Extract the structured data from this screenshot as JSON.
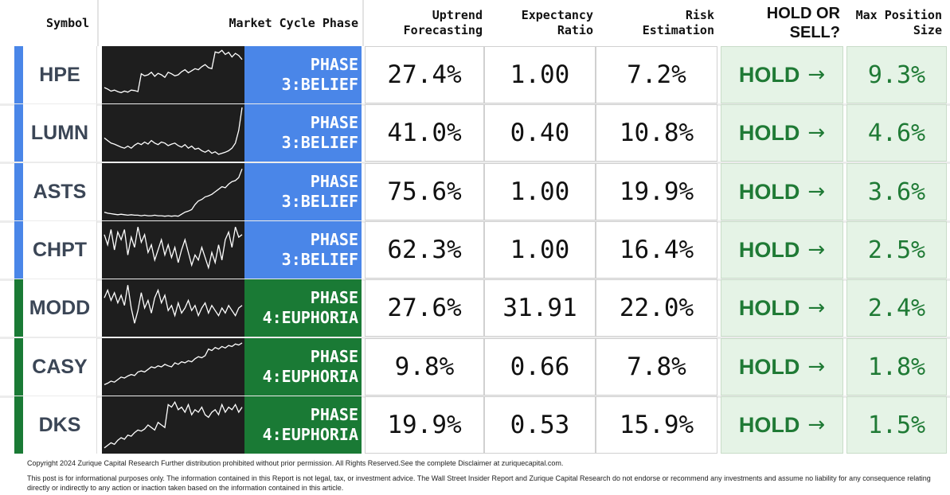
{
  "header": {
    "symbol": "Symbol",
    "phase": "Market Cycle Phase",
    "uptrend": [
      "Uptrend",
      "Forecasting"
    ],
    "expectancy": [
      "Expectancy",
      "Ratio"
    ],
    "risk": [
      "Risk",
      "Estimation"
    ],
    "hold": [
      "HOLD OR",
      "SELL?"
    ],
    "max": [
      "Max Position",
      "Size"
    ]
  },
  "colors": {
    "phase3": "#4a86e8",
    "phase4": "#1a7a35",
    "stripe_blue": "#4a86e8",
    "stripe_green": "#1a7a35",
    "hold_green": "#1f7a35",
    "hold_bg": "#e5f3e6",
    "spark_bg": "#1e1e1e"
  },
  "rows": [
    {
      "symbol": "HPE",
      "phase_line1": "PHASE",
      "phase_line2": "3:BELIEF",
      "phase_color": "#4a86e8",
      "uptrend": "27.4%",
      "expectancy": "1.00",
      "risk": "7.2%",
      "hold": "HOLD",
      "arrow": "→",
      "max": "9.3%",
      "spark": [
        0.25,
        0.22,
        0.18,
        0.2,
        0.17,
        0.15,
        0.18,
        0.16,
        0.2,
        0.19,
        0.17,
        0.52,
        0.48,
        0.5,
        0.55,
        0.47,
        0.53,
        0.5,
        0.45,
        0.55,
        0.52,
        0.48,
        0.5,
        0.56,
        0.6,
        0.54,
        0.58,
        0.62,
        0.6,
        0.66,
        0.7,
        0.64,
        0.62,
        0.95,
        0.93,
        0.98,
        0.9,
        0.94,
        0.85,
        0.92,
        0.88,
        0.8
      ]
    },
    {
      "symbol": "LUMN",
      "phase_line1": "PHASE",
      "phase_line2": "3:BELIEF",
      "phase_color": "#4a86e8",
      "uptrend": "41.0%",
      "expectancy": "0.40",
      "risk": "10.8%",
      "hold": "HOLD",
      "arrow": "→",
      "max": "4.6%",
      "spark": [
        0.4,
        0.35,
        0.3,
        0.28,
        0.25,
        0.22,
        0.2,
        0.24,
        0.2,
        0.26,
        0.3,
        0.27,
        0.32,
        0.28,
        0.35,
        0.3,
        0.27,
        0.32,
        0.3,
        0.25,
        0.28,
        0.3,
        0.25,
        0.22,
        0.27,
        0.2,
        0.24,
        0.18,
        0.2,
        0.15,
        0.12,
        0.16,
        0.1,
        0.13,
        0.08,
        0.1,
        0.12,
        0.15,
        0.2,
        0.3,
        0.55,
        1.0
      ]
    },
    {
      "symbol": "ASTS",
      "phase_line1": "PHASE",
      "phase_line2": "3:BELIEF",
      "phase_color": "#4a86e8",
      "uptrend": "75.6%",
      "expectancy": "1.00",
      "risk": "19.9%",
      "hold": "HOLD",
      "arrow": "→",
      "max": "3.6%",
      "spark": [
        0.1,
        0.08,
        0.07,
        0.06,
        0.05,
        0.06,
        0.05,
        0.04,
        0.05,
        0.04,
        0.04,
        0.03,
        0.04,
        0.03,
        0.03,
        0.04,
        0.03,
        0.03,
        0.02,
        0.03,
        0.02,
        0.03,
        0.02,
        0.06,
        0.1,
        0.12,
        0.15,
        0.25,
        0.32,
        0.35,
        0.4,
        0.42,
        0.45,
        0.5,
        0.55,
        0.6,
        0.58,
        0.65,
        0.7,
        0.72,
        0.78,
        0.95
      ]
    },
    {
      "symbol": "CHPT",
      "phase_line1": "PHASE",
      "phase_line2": "3:BELIEF",
      "phase_color": "#4a86e8",
      "uptrend": "62.3%",
      "expectancy": "1.00",
      "risk": "16.4%",
      "hold": "HOLD",
      "arrow": "→",
      "max": "2.5%",
      "spark": [
        0.8,
        0.6,
        0.9,
        0.5,
        0.85,
        0.7,
        0.9,
        0.4,
        0.75,
        0.55,
        0.95,
        0.65,
        0.8,
        0.45,
        0.6,
        0.3,
        0.5,
        0.7,
        0.4,
        0.6,
        0.35,
        0.55,
        0.25,
        0.5,
        0.7,
        0.45,
        0.2,
        0.4,
        0.3,
        0.55,
        0.35,
        0.15,
        0.45,
        0.25,
        0.6,
        0.3,
        0.7,
        0.85,
        0.55,
        0.95,
        0.75,
        0.8
      ]
    },
    {
      "symbol": "MODD",
      "phase_line1": "PHASE",
      "phase_line2": "4:EUPHORIA",
      "phase_color": "#1a7a35",
      "uptrend": "27.6%",
      "expectancy": "31.91",
      "risk": "22.0%",
      "hold": "HOLD",
      "arrow": "→",
      "max": "2.4%",
      "spark": [
        0.7,
        0.85,
        0.65,
        0.8,
        0.6,
        0.75,
        0.55,
        0.95,
        0.5,
        0.2,
        0.45,
        0.8,
        0.5,
        0.65,
        0.4,
        0.7,
        0.85,
        0.6,
        0.75,
        0.45,
        0.55,
        0.35,
        0.6,
        0.4,
        0.5,
        0.65,
        0.45,
        0.55,
        0.35,
        0.5,
        0.6,
        0.4,
        0.55,
        0.45,
        0.35,
        0.5,
        0.4,
        0.55,
        0.45,
        0.35,
        0.5,
        0.55
      ]
    },
    {
      "symbol": "CASY",
      "phase_line1": "PHASE",
      "phase_line2": "4:EUPHORIA",
      "phase_color": "#1a7a35",
      "uptrend": "9.8%",
      "expectancy": "0.66",
      "risk": "7.8%",
      "hold": "HOLD",
      "arrow": "→",
      "max": "1.8%",
      "spark": [
        0.15,
        0.18,
        0.22,
        0.2,
        0.25,
        0.3,
        0.28,
        0.32,
        0.35,
        0.33,
        0.4,
        0.42,
        0.4,
        0.45,
        0.5,
        0.48,
        0.52,
        0.5,
        0.55,
        0.52,
        0.5,
        0.58,
        0.55,
        0.6,
        0.58,
        0.62,
        0.6,
        0.66,
        0.7,
        0.68,
        0.72,
        0.85,
        0.82,
        0.88,
        0.85,
        0.9,
        0.87,
        0.92,
        0.9,
        0.95,
        0.93,
        0.97
      ]
    },
    {
      "symbol": "DKS",
      "phase_line1": "PHASE",
      "phase_line2": "4:EUPHORIA",
      "phase_color": "#1a7a35",
      "uptrend": "19.9%",
      "expectancy": "0.53",
      "risk": "15.9%",
      "hold": "HOLD",
      "arrow": "→",
      "max": "1.5%",
      "spark": [
        0.05,
        0.1,
        0.15,
        0.12,
        0.2,
        0.25,
        0.22,
        0.3,
        0.28,
        0.35,
        0.4,
        0.38,
        0.42,
        0.5,
        0.45,
        0.4,
        0.55,
        0.5,
        0.45,
        0.9,
        0.85,
        0.95,
        0.8,
        0.85,
        0.75,
        0.9,
        0.7,
        0.8,
        0.75,
        0.85,
        0.7,
        0.65,
        0.75,
        0.8,
        0.7,
        0.9,
        0.75,
        0.85,
        0.8,
        0.9,
        0.75,
        0.85
      ]
    }
  ],
  "footer": {
    "copyright": "Copyright 2024 Zurique Capital Research Further distribution prohibited without prior permission. All Rights Reserved.See the complete Disclaimer at zuriquecapital.com.",
    "disclaimer": "This post is for informational purposes only. The information contained in this Report is not legal, tax, or investment advice. The Wall Street Insider Report and Zurique Capital Research do not endorse or recommend any investments and assume no liability for any consequence relating directly or indirectly to any action or inaction taken based on the information contained in this article."
  }
}
